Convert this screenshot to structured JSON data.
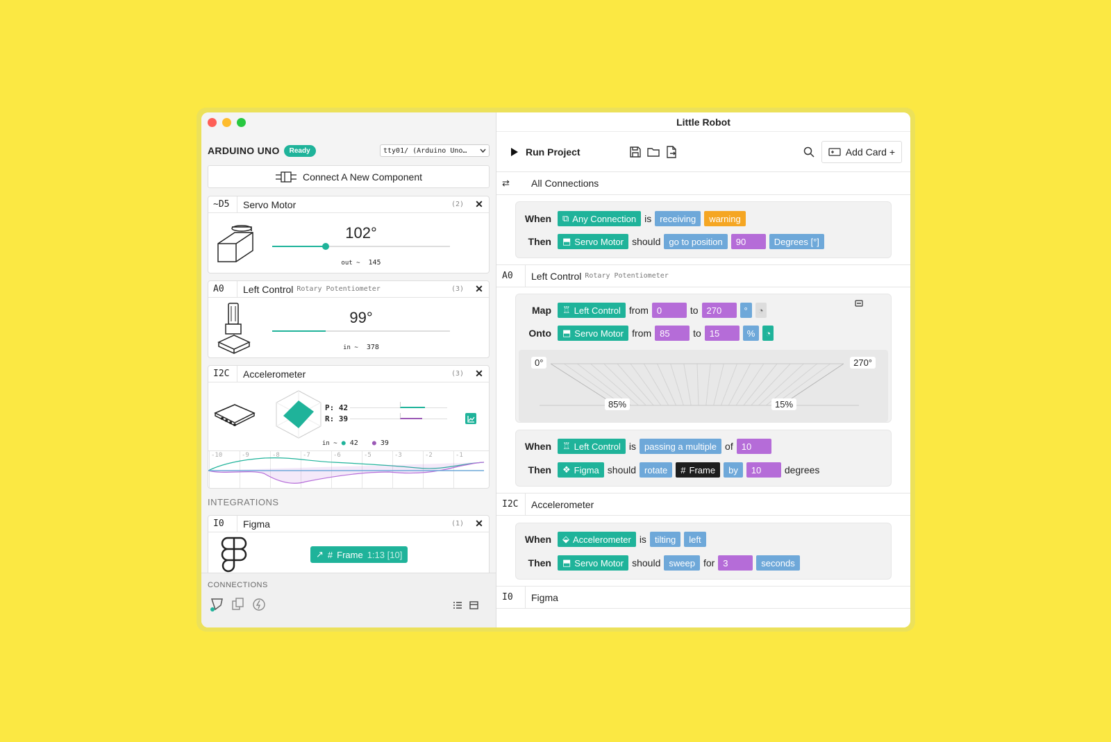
{
  "window": {
    "title": "Little Robot"
  },
  "board": {
    "name": "ARDUINO UNO",
    "status": "Ready",
    "port": "tty01/ (Arduino Uno…"
  },
  "connect_label": "Connect A New Component",
  "components": [
    {
      "pin": "~D5",
      "name": "Servo Motor",
      "subtitle": "",
      "count": "(2)",
      "value": "102°",
      "value_fraction": 0.3,
      "io_label": "out ~",
      "io_value": "145"
    },
    {
      "pin": "A0",
      "name": "Left Control",
      "subtitle": "Rotary Potentiometer",
      "count": "(3)",
      "value": "99°",
      "value_fraction": 0.3,
      "io_label": "in ~",
      "io_value": "378"
    },
    {
      "pin": "I2C",
      "name": "Accelerometer",
      "subtitle": "",
      "count": "(3)",
      "pitch_label": "P: 42",
      "roll_label": "R: 39",
      "io_label": "in ~",
      "io_p": "42",
      "io_r": "39",
      "graph_ticks": [
        "-10",
        "-9",
        "-8",
        "-7",
        "-6",
        "-5",
        "-3",
        "-2",
        "-1"
      ]
    }
  ],
  "integrations_label": "INTEGRATIONS",
  "integration": {
    "pin": "I0",
    "name": "Figma",
    "count": "(1)",
    "chip_label": "Frame",
    "chip_detail": "1:13 [10]"
  },
  "connections_label": "CONNECTIONS",
  "toolbar": {
    "run_label": "Run Project",
    "add_card_label": "Add Card +"
  },
  "groups": [
    {
      "pin": "",
      "name": "All Connections",
      "subtitle": ""
    },
    {
      "pin": "A0",
      "name": "Left Control",
      "subtitle": "Rotary Potentiometer"
    },
    {
      "pin": "I2C",
      "name": "Accelerometer",
      "subtitle": ""
    },
    {
      "pin": "I0",
      "name": "Figma",
      "subtitle": ""
    }
  ],
  "rules": {
    "r1": {
      "when": "When",
      "device": "Any Connection",
      "is": "is",
      "state": "receiving",
      "value": "warning",
      "then": "Then",
      "target": "Servo Motor",
      "should": "should",
      "action": "go to position",
      "amount": "90",
      "unit": "Degrees [°]"
    },
    "map": {
      "map": "Map",
      "device": "Left Control",
      "from": "from",
      "from_val": "0",
      "to": "to",
      "to_val": "270",
      "unit": "°",
      "onto": "Onto",
      "target": "Servo Motor",
      "onto_from": "85",
      "onto_to": "15",
      "onto_unit": "%",
      "left_top": "0°",
      "right_top": "270°",
      "left_bottom": "85%",
      "right_bottom": "15%"
    },
    "r3": {
      "when": "When",
      "device": "Left Control",
      "is": "is",
      "state": "passing a multiple",
      "of": "of",
      "value": "10",
      "then": "Then",
      "target": "Figma",
      "should": "should",
      "action": "rotate",
      "frame": "Frame",
      "by": "by",
      "amount": "10",
      "unit": "degrees"
    },
    "r4": {
      "when": "When",
      "device": "Accelerometer",
      "is": "is",
      "state": "tilting",
      "direction": "left",
      "then": "Then",
      "target": "Servo Motor",
      "should": "should",
      "action": "sweep",
      "for": "for",
      "amount": "3",
      "unit": "seconds"
    }
  },
  "colors": {
    "accent": "#1fb39a",
    "blue": "#6ea8d9",
    "purple": "#b56cd8",
    "orange": "#f5a623",
    "background": "#fbe843"
  }
}
